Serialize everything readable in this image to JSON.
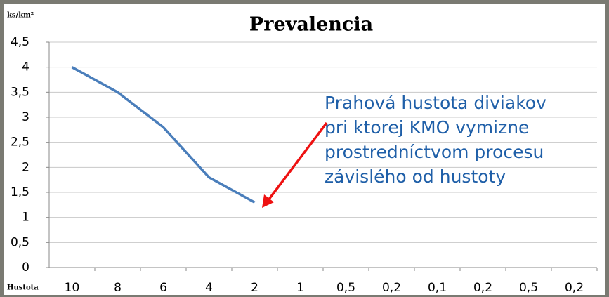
{
  "chart_data": {
    "type": "line",
    "title": "Prevalencia",
    "y_label": "ks/km²",
    "x_label": "Hustota",
    "categories": [
      "10",
      "8",
      "6",
      "4",
      "2",
      "1",
      "0,5",
      "0,2",
      "0,1",
      "0,2",
      "0,5",
      "0,2"
    ],
    "values": [
      4,
      3.5,
      2.8,
      1.8,
      1.3,
      null,
      null,
      null,
      null,
      null,
      null,
      null
    ],
    "color": "#4a7ebb",
    "ylim": [
      0,
      4.5
    ],
    "yticks": [
      0,
      {
        "value": 0.5,
        "label": "0,5"
      },
      1,
      {
        "value": 1.5,
        "label": "1,5"
      },
      2,
      {
        "value": 2.5,
        "label": "2,5"
      },
      3,
      {
        "value": 3.5,
        "label": "3,5"
      },
      4,
      {
        "value": 4.5,
        "label": "4,5"
      }
    ],
    "grid": true,
    "annotation": [
      "Prahová hustota diviakov",
      "pri ktorej KMO vymizne",
      "prostredníctvom procesu",
      "závislého od hustoty"
    ],
    "annotation_color": "#1f5fa8",
    "arrow_color": "#ee1111"
  }
}
